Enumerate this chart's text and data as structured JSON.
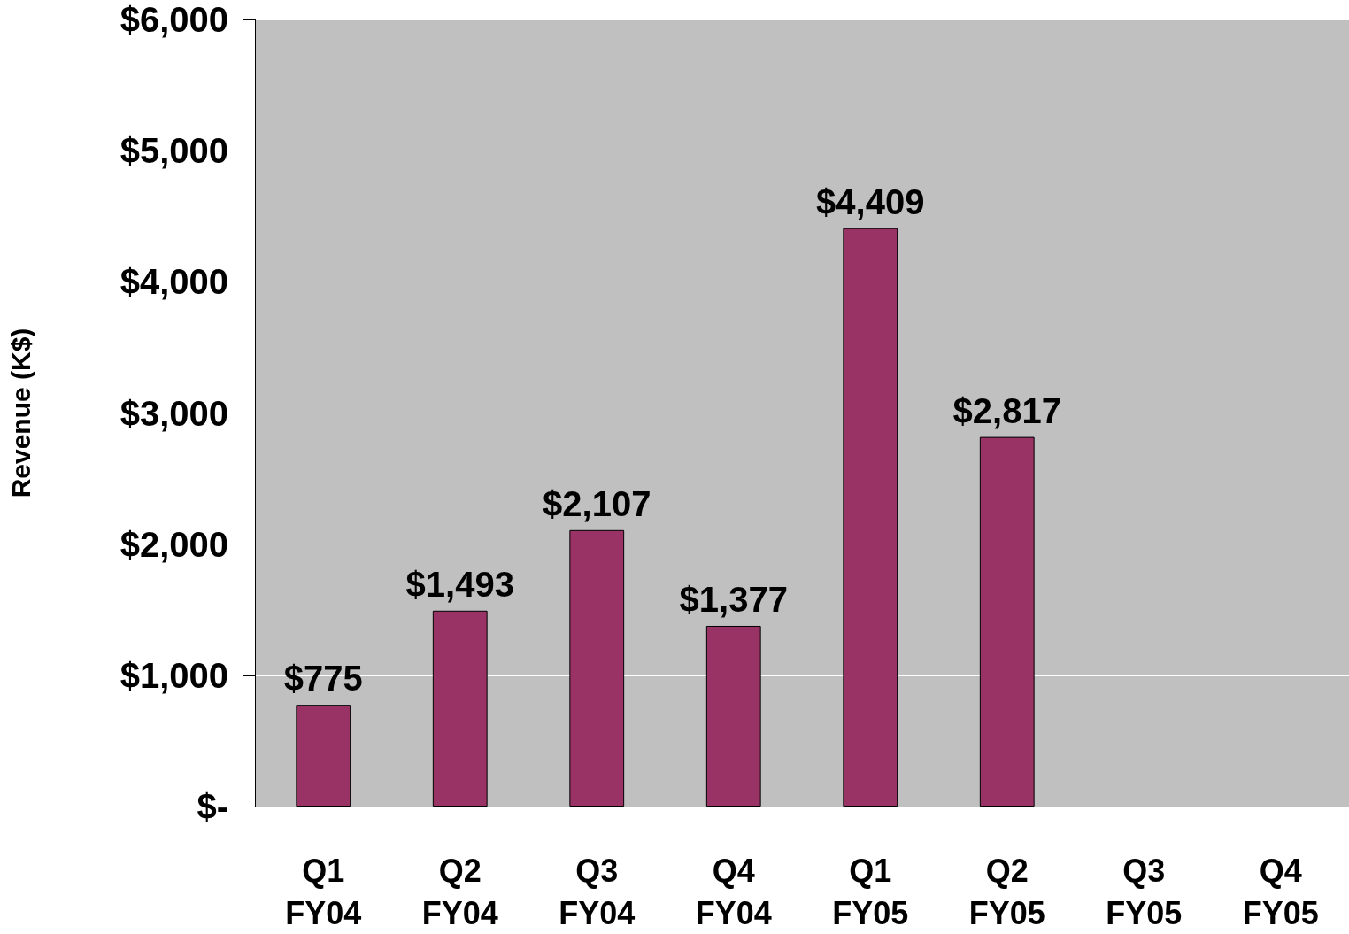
{
  "chart_data": {
    "type": "bar",
    "ylabel": "Revenue (K$)",
    "categories": [
      "Q1\nFY04",
      "Q2\nFY04",
      "Q3\nFY04",
      "Q4\nFY04",
      "Q1\nFY05",
      "Q2\nFY05",
      "Q3\nFY05",
      "Q4\nFY05"
    ],
    "values": [
      775,
      1493,
      2107,
      1377,
      4409,
      2817,
      null,
      null
    ],
    "value_labels": [
      "$775",
      "$1,493",
      "$2,107",
      "$1,377",
      "$4,409",
      "$2,817",
      null,
      null
    ],
    "color": "#993366",
    "ylim": [
      0,
      6000
    ],
    "yticks": [
      {
        "value": 0,
        "label": "$-"
      },
      {
        "value": 1000,
        "label": "$1,000"
      },
      {
        "value": 2000,
        "label": "$2,000"
      },
      {
        "value": 3000,
        "label": "$3,000"
      },
      {
        "value": 4000,
        "label": "$4,000"
      },
      {
        "value": 5000,
        "label": "$5,000"
      },
      {
        "value": 6000,
        "label": "$6,000"
      }
    ],
    "grid": "y"
  }
}
